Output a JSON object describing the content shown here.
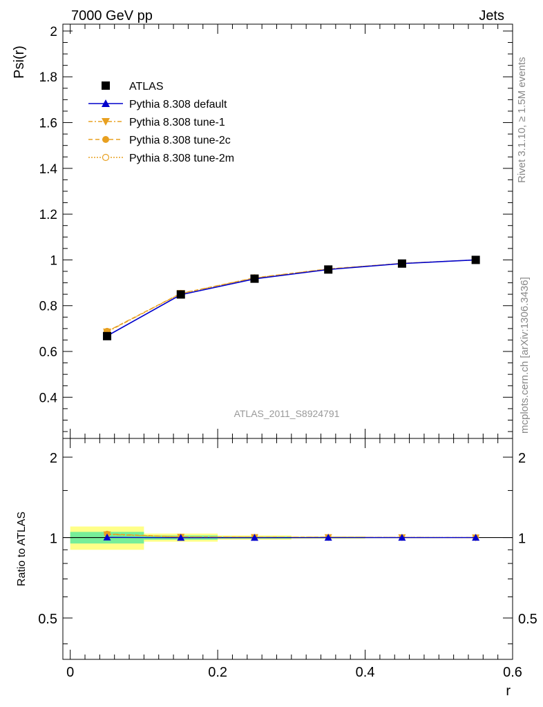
{
  "header": {
    "left": "7000 GeV pp",
    "right": "Jets"
  },
  "side_labels": {
    "top": "Rivet 3.1.10, ≥ 1.5M events",
    "bottom": "mcplots.cern.ch [arXiv:1306.3436]"
  },
  "watermark": "ATLAS_2011_S8924791",
  "colors": {
    "data": "#000000",
    "default": "#0000cc",
    "tunes": "#e8a020",
    "band_inner": "#77ee99",
    "band_outer": "#ffff88"
  },
  "chart_data": [
    {
      "type": "line",
      "ylabel": "Psi(r)",
      "xlabel": "",
      "xlim": [
        -0.01,
        0.6
      ],
      "ylim": [
        0.22,
        2.03
      ],
      "yticks": [
        0.4,
        0.6,
        0.8,
        1,
        1.2,
        1.4,
        1.6,
        1.8,
        2
      ],
      "ytick_labels": [
        "0.4",
        "0.6",
        "0.8",
        "1",
        "1.2",
        "1.4",
        "1.6",
        "1.8",
        "2"
      ],
      "x": [
        0.05,
        0.15,
        0.25,
        0.35,
        0.45,
        0.55
      ],
      "legend": "top-left",
      "series": [
        {
          "name": "ATLAS",
          "marker": "square",
          "values": [
            0.667,
            0.849,
            0.918,
            0.958,
            0.984,
            1.0
          ]
        },
        {
          "name": "Pythia 8.308 default",
          "marker": "triangle-up",
          "values": [
            0.668,
            0.848,
            0.917,
            0.958,
            0.984,
            1.0
          ]
        },
        {
          "name": "Pythia 8.308 tune-1",
          "marker": "triangle-down",
          "values": [
            0.685,
            0.853,
            0.921,
            0.96,
            0.985,
            1.0
          ]
        },
        {
          "name": "Pythia 8.308 tune-2c",
          "marker": "circle",
          "values": [
            0.688,
            0.854,
            0.922,
            0.961,
            0.985,
            1.0
          ]
        },
        {
          "name": "Pythia 8.308 tune-2m",
          "marker": "circle-open",
          "values": [
            0.687,
            0.853,
            0.921,
            0.96,
            0.985,
            1.0
          ]
        }
      ]
    },
    {
      "type": "line",
      "ylabel": "Ratio to ATLAS",
      "xlabel": "r",
      "xlim": [
        -0.01,
        0.6
      ],
      "ylim": [
        0.35,
        2.35
      ],
      "yscale": "log",
      "yticks": [
        0.5,
        1,
        2
      ],
      "ytick_labels": [
        "0.5",
        "1",
        "2"
      ],
      "xticks": [
        0,
        0.2,
        0.4,
        0.6
      ],
      "xtick_labels": [
        "0",
        "0.2",
        "0.4",
        "0.6"
      ],
      "x": [
        0.05,
        0.15,
        0.25,
        0.35,
        0.45,
        0.55
      ],
      "band_edges": [
        0.0,
        0.1,
        0.2,
        0.3,
        0.4,
        0.5,
        0.6
      ],
      "band_inner": [
        0.05,
        0.018,
        0.009,
        0.005,
        0.003,
        0.0
      ],
      "band_outer": [
        0.1,
        0.035,
        0.018,
        0.01,
        0.005,
        0.0
      ],
      "series": [
        {
          "name": "Pythia 8.308 default",
          "values": [
            1.002,
            0.999,
            0.999,
            1.0,
            1.0,
            1.0
          ]
        },
        {
          "name": "Pythia 8.308 tune-1",
          "values": [
            1.027,
            1.005,
            1.003,
            1.002,
            1.001,
            1.0
          ]
        },
        {
          "name": "Pythia 8.308 tune-2c",
          "values": [
            1.032,
            1.006,
            1.004,
            1.003,
            1.001,
            1.0
          ]
        },
        {
          "name": "Pythia 8.308 tune-2m",
          "values": [
            1.03,
            1.005,
            1.003,
            1.002,
            1.001,
            1.0
          ]
        }
      ]
    }
  ]
}
